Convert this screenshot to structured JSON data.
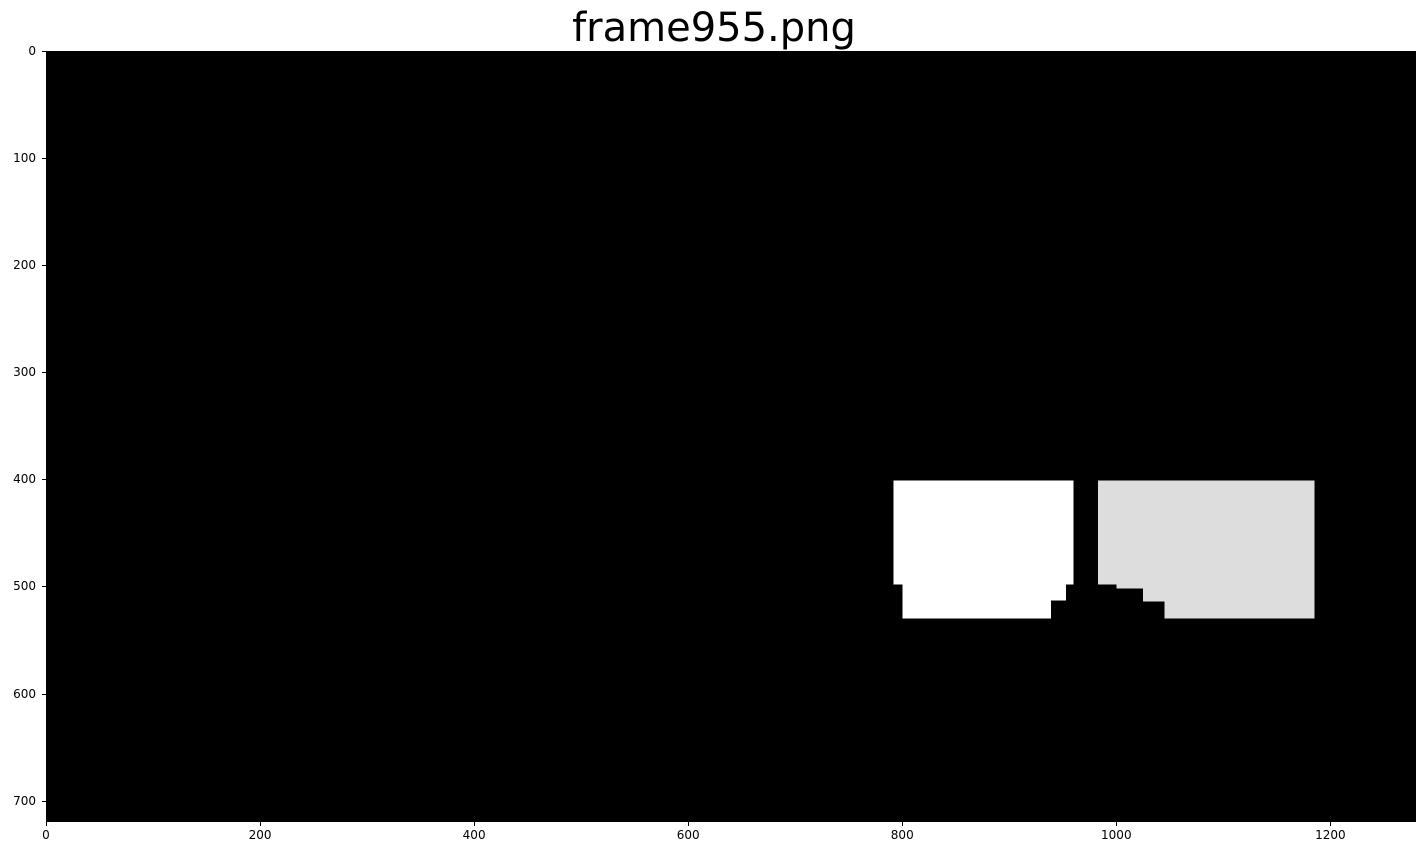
{
  "figure": {
    "title": "frame955.png"
  },
  "image": {
    "width": 1280,
    "height": 720,
    "background_color": "#000000",
    "x_ticks": [
      0,
      200,
      400,
      600,
      800,
      1000,
      1200
    ],
    "y_ticks": [
      0,
      100,
      200,
      300,
      400,
      500,
      600,
      700
    ],
    "regions": [
      {
        "name": "white-mask-region",
        "color": "#ffffff",
        "polygon": [
          [
            792,
            401
          ],
          [
            960,
            401
          ],
          [
            960,
            498
          ],
          [
            953,
            498
          ],
          [
            953,
            513
          ],
          [
            939,
            513
          ],
          [
            939,
            530
          ],
          [
            800,
            530
          ],
          [
            800,
            498
          ],
          [
            792,
            498
          ]
        ]
      },
      {
        "name": "light-gray-mask-region",
        "color": "#dddddd",
        "polygon": [
          [
            983,
            401
          ],
          [
            1185,
            401
          ],
          [
            1185,
            530
          ],
          [
            1045,
            530
          ],
          [
            1045,
            514
          ],
          [
            1025,
            514
          ],
          [
            1025,
            502
          ],
          [
            1000,
            502
          ],
          [
            1000,
            498
          ],
          [
            983,
            498
          ]
        ]
      }
    ]
  }
}
